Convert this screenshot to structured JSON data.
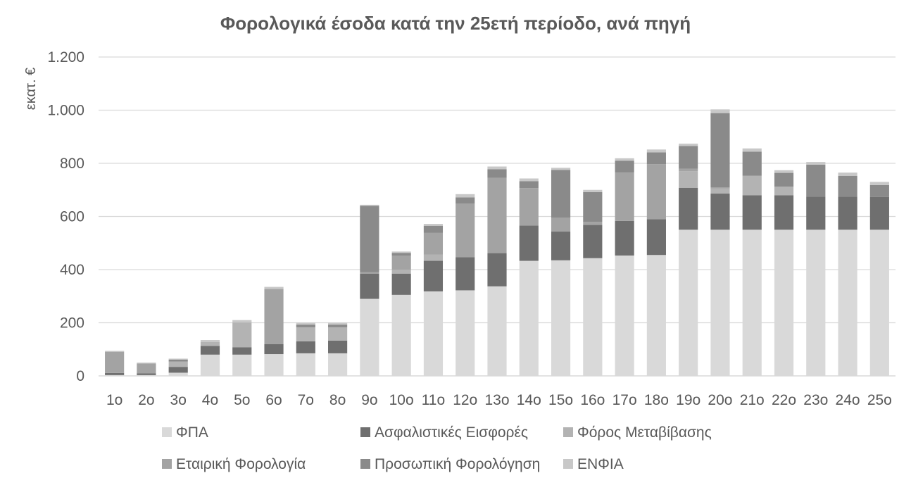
{
  "chart_data": {
    "type": "bar",
    "stacked": true,
    "title": "Φορολογικά έσοδα κατά την 25ετή περίοδο, ανά πηγή",
    "xlabel": "",
    "ylabel": "εκατ. €",
    "ylim": [
      0,
      1200
    ],
    "yticks": [
      0,
      200,
      400,
      600,
      800,
      1000,
      1200
    ],
    "ytick_labels": [
      "0",
      "200",
      "400",
      "600",
      "800",
      "1.000",
      "1.200"
    ],
    "grid": true,
    "legend_position": "bottom",
    "categories": [
      "1ο",
      "2ο",
      "3ο",
      "4ο",
      "5ο",
      "6ο",
      "7ο",
      "8ο",
      "9ο",
      "10ο",
      "11ο",
      "12ο",
      "13ο",
      "14ο",
      "15ο",
      "16ο",
      "17ο",
      "18ο",
      "19ο",
      "20ο",
      "21ο",
      "22ο",
      "23ο",
      "24ο",
      "25ο"
    ],
    "series": [
      {
        "name": "ΦΠΑ",
        "color": "#d9d9d9",
        "values": [
          3,
          3,
          12,
          80,
          80,
          82,
          85,
          85,
          290,
          305,
          318,
          322,
          337,
          433,
          435,
          443,
          453,
          455,
          550,
          550,
          550,
          550,
          550,
          550,
          550
        ]
      },
      {
        "name": "Ασφαλιστικές Εισφορές",
        "color": "#6f6f6f",
        "values": [
          8,
          7,
          22,
          33,
          28,
          38,
          45,
          48,
          95,
          80,
          115,
          125,
          125,
          133,
          108,
          125,
          130,
          135,
          158,
          136,
          130,
          130,
          125,
          125,
          123
        ]
      },
      {
        "name": "Φόρος Μεταβίβασης",
        "color": "#b3b3b3",
        "values": [
          0,
          0,
          20,
          15,
          93,
          0,
          53,
          50,
          0,
          15,
          23,
          0,
          0,
          0,
          0,
          0,
          0,
          0,
          62,
          20,
          73,
          32,
          0,
          0,
          0
        ]
      },
      {
        "name": "Εταιρική Φορολογία",
        "color": "#a3a3a3",
        "values": [
          80,
          37,
          0,
          0,
          0,
          207,
          0,
          0,
          5,
          53,
          82,
          202,
          283,
          141,
          52,
          12,
          182,
          207,
          10,
          3,
          0,
          0,
          0,
          0,
          0
        ]
      },
      {
        "name": "Προσωπική Φορολόγηση",
        "color": "#8a8a8a",
        "values": [
          0,
          0,
          7,
          0,
          0,
          0,
          10,
          10,
          250,
          10,
          27,
          23,
          33,
          26,
          180,
          112,
          45,
          44,
          85,
          280,
          91,
          52,
          120,
          78,
          45
        ]
      },
      {
        "name": "ΕΝΦΙΑ",
        "color": "#c8c8c8",
        "values": [
          3,
          3,
          4,
          7,
          9,
          8,
          7,
          7,
          4,
          5,
          7,
          12,
          10,
          10,
          8,
          8,
          9,
          11,
          9,
          14,
          12,
          10,
          10,
          12,
          12
        ]
      }
    ]
  }
}
